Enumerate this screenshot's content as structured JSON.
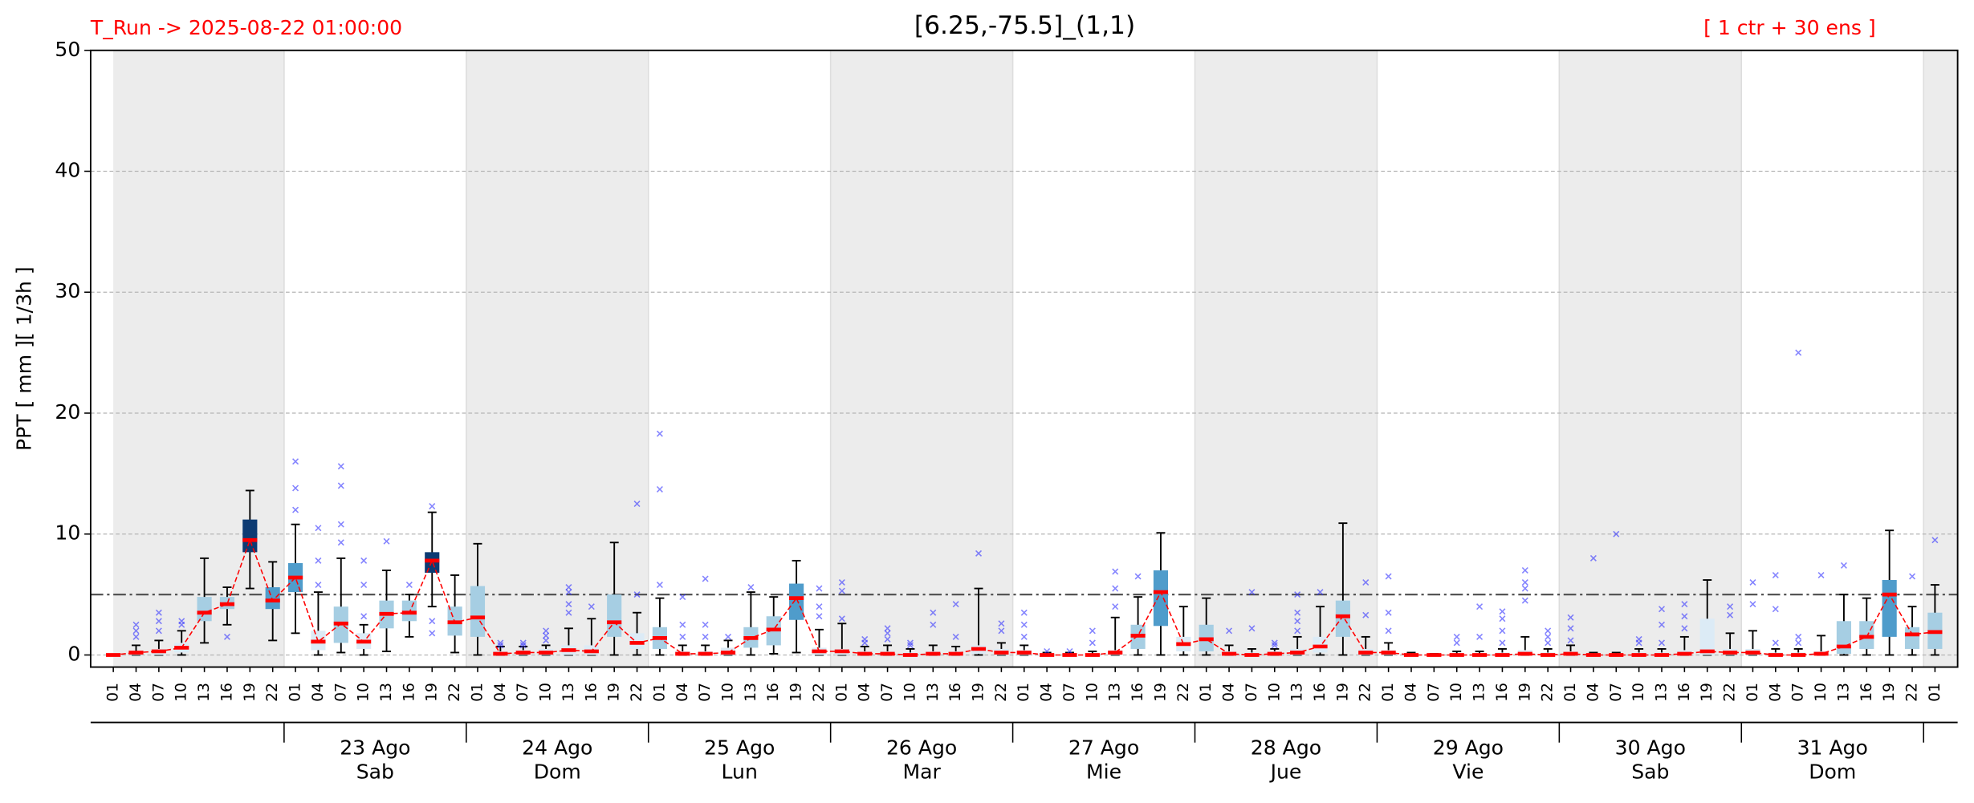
{
  "chart_data": {
    "type": "boxplot",
    "title": "[6.25,-75.5]_(1,1)",
    "run_label": "T_Run -> 2025-08-22  01:00:00",
    "members_label": "[ 1 ctr + 30 ens ]",
    "ylabel": "PPT  [ mm ][ 1/3h ]",
    "categories": [
      "01",
      "04",
      "07",
      "10",
      "13",
      "16",
      "19",
      "22",
      "01",
      "04",
      "07",
      "10",
      "13",
      "16",
      "19",
      "22",
      "01",
      "04",
      "07",
      "10",
      "13",
      "16",
      "19",
      "22",
      "01",
      "04",
      "07",
      "10",
      "13",
      "16",
      "19",
      "22",
      "01",
      "04",
      "07",
      "10",
      "13",
      "16",
      "19",
      "22",
      "01",
      "04",
      "07",
      "10",
      "13",
      "16",
      "19",
      "22",
      "01",
      "04",
      "07",
      "10",
      "13",
      "16",
      "19",
      "22",
      "01",
      "04",
      "07",
      "10",
      "13",
      "16",
      "19",
      "22",
      "01",
      "04",
      "07",
      "10",
      "13",
      "16",
      "19",
      "22",
      "01",
      "04",
      "07",
      "10",
      "13",
      "16",
      "19",
      "22",
      "01"
    ],
    "day_labels": [
      {
        "date": "23 Ago",
        "weekday": "Sab"
      },
      {
        "date": "24 Ago",
        "weekday": "Dom"
      },
      {
        "date": "25 Ago",
        "weekday": "Lun"
      },
      {
        "date": "26 Ago",
        "weekday": "Mar"
      },
      {
        "date": "27 Ago",
        "weekday": "Mie"
      },
      {
        "date": "28 Ago",
        "weekday": "Jue"
      },
      {
        "date": "29 Ago",
        "weekday": "Vie"
      },
      {
        "date": "30 Ago",
        "weekday": "Sab"
      },
      {
        "date": "31 Ago",
        "weekday": "Dom"
      }
    ],
    "ylim": [
      -1,
      50
    ],
    "yticks": [
      0,
      10,
      20,
      30,
      40,
      50
    ],
    "grid": true,
    "threshold": 5,
    "median": [
      0,
      0.2,
      0.3,
      0.6,
      3.5,
      4.2,
      9.5,
      4.5,
      6.4,
      1.1,
      2.6,
      1.1,
      3.4,
      3.5,
      7.8,
      2.7,
      3.1,
      0.1,
      0.2,
      0.2,
      0.4,
      0.3,
      2.7,
      1,
      1.4,
      0.1,
      0.1,
      0.2,
      1.4,
      2.1,
      4.7,
      0.3,
      0.3,
      0.1,
      0.1,
      0,
      0.1,
      0.1,
      0.5,
      0.2,
      0.2,
      0,
      0,
      0,
      0.2,
      1.6,
      5.2,
      0.9,
      1.3,
      0.1,
      0,
      0.1,
      0.2,
      0.7,
      3.2,
      0.2,
      0.2,
      0,
      0,
      0,
      0,
      0,
      0.1,
      0,
      0.1,
      0,
      0,
      0,
      0,
      0.1,
      0.3,
      0.2,
      0.2,
      0,
      0,
      0.1,
      0.7,
      1.5,
      5,
      1.7,
      1.9
    ],
    "q1": [
      0,
      0,
      0,
      0.2,
      2.8,
      3.8,
      8.5,
      3.8,
      5.2,
      0.4,
      1,
      0.5,
      2.2,
      2.8,
      6.8,
      1.6,
      1.5,
      0,
      0,
      0,
      0,
      0,
      1.5,
      0.5,
      0.5,
      0,
      0,
      0,
      0.6,
      0.8,
      2.9,
      0,
      0,
      0,
      0,
      0,
      0,
      0,
      0.1,
      0,
      0,
      0,
      0,
      0,
      0,
      0.5,
      2.4,
      0.3,
      0.3,
      0,
      0,
      0,
      0,
      0.2,
      1.5,
      0,
      0,
      0,
      0,
      0,
      0,
      0,
      0,
      0,
      0,
      0,
      0,
      0,
      0,
      0,
      0,
      0,
      0,
      0,
      0,
      0,
      0.1,
      0.5,
      1.5,
      0.5,
      0.5
    ],
    "q3": [
      0,
      0.3,
      0.5,
      1,
      4.8,
      4.8,
      11.2,
      5.6,
      7.6,
      2,
      4,
      1.8,
      4.5,
      4.5,
      8.5,
      4,
      5.7,
      0.3,
      0.4,
      0.5,
      0.8,
      0.8,
      5,
      1.8,
      2.3,
      0.3,
      0.3,
      0.6,
      2.3,
      3.2,
      5.9,
      0.6,
      0.5,
      0.3,
      0.3,
      0.2,
      0.3,
      0.3,
      0.8,
      0.5,
      0.4,
      0.1,
      0.1,
      0.1,
      0.4,
      2.5,
      7,
      1.5,
      2.5,
      0.3,
      0.2,
      0.3,
      0.5,
      1.5,
      4.5,
      0.5,
      0.4,
      0,
      0,
      0.1,
      0.1,
      0.2,
      0.4,
      0.2,
      0.3,
      0.1,
      0.1,
      0.2,
      0.2,
      0.4,
      3,
      0.5,
      0.5,
      0.2,
      0.2,
      0.3,
      2.8,
      2.8,
      6.2,
      2.3,
      3.5
    ],
    "whisker_low": [
      0,
      0,
      0,
      0,
      1,
      2.5,
      5.5,
      1.2,
      1.8,
      0,
      0.2,
      0,
      0.3,
      1.5,
      4,
      0.2,
      0,
      0,
      0,
      0,
      0,
      0,
      0,
      0,
      0,
      0,
      0,
      0,
      0,
      0.1,
      0.2,
      0,
      0,
      0,
      0,
      0,
      0,
      0,
      0,
      0,
      0,
      0,
      0,
      0,
      0,
      0,
      0,
      0,
      0,
      0,
      0,
      0,
      0,
      0,
      0,
      0,
      0,
      0,
      0,
      0,
      0,
      0,
      0,
      0,
      0,
      0,
      0,
      0,
      0,
      0,
      0,
      0,
      0,
      0,
      0,
      0,
      0,
      0,
      0,
      0,
      0
    ],
    "whisker_high": [
      0,
      0.8,
      1.2,
      2,
      8,
      5.6,
      13.6,
      7.7,
      10.8,
      5.2,
      8,
      2.5,
      7,
      5,
      11.8,
      6.6,
      9.2,
      0.7,
      0.7,
      0.8,
      2.2,
      3,
      9.3,
      3.5,
      4.7,
      0.8,
      0.8,
      1.2,
      5.2,
      4.8,
      7.8,
      2.1,
      2.6,
      0.7,
      0.8,
      0.5,
      0.8,
      0.7,
      5.5,
      1,
      0.8,
      0.2,
      0.2,
      0.3,
      3.1,
      4.8,
      10.1,
      4,
      4.7,
      0.8,
      0.5,
      0.5,
      1.5,
      4,
      10.9,
      1.5,
      1,
      0.2,
      0.1,
      0.3,
      0.3,
      0.5,
      1.5,
      0.5,
      0.8,
      0.2,
      0.2,
      0.5,
      0.5,
      1.5,
      6.2,
      1.8,
      2,
      0.5,
      0.5,
      1.6,
      5,
      4.7,
      10.3,
      4,
      5.8
    ],
    "outliers": [
      [],
      [
        1.5,
        2,
        2.5
      ],
      [
        2,
        2.8,
        3.5
      ],
      [
        2.5,
        2.8
      ],
      [],
      [
        1.5
      ],
      [],
      [],
      [
        12,
        13.8,
        16
      ],
      [
        5.8,
        7.8,
        10.5
      ],
      [
        9.3,
        10.8,
        14,
        15.6
      ],
      [
        3.2,
        5.8,
        7.8
      ],
      [
        9.4
      ],
      [
        5.8
      ],
      [
        1.8,
        2.8,
        12.3
      ],
      [],
      [],
      [
        0.8,
        1
      ],
      [
        0.8,
        1
      ],
      [
        1.2,
        1.6,
        2
      ],
      [
        3.5,
        4.2,
        5.2,
        5.6
      ],
      [
        4
      ],
      [],
      [
        5,
        12.5
      ],
      [
        5.8,
        13.7,
        18.3
      ],
      [
        1.5,
        2.5,
        4.8
      ],
      [
        1.5,
        2.5,
        6.3
      ],
      [
        1.5
      ],
      [
        5.6
      ],
      [],
      [],
      [
        3.2,
        4,
        5.5
      ],
      [
        3,
        5.3,
        6
      ],
      [
        1,
        1.3
      ],
      [
        1.3,
        1.8,
        2.2
      ],
      [
        0.8,
        1
      ],
      [
        2.5,
        3.5
      ],
      [
        1.5,
        4.2
      ],
      [
        8.4
      ],
      [
        2,
        2.6
      ],
      [
        1.5,
        2.5,
        3.5
      ],
      [
        0.3
      ],
      [
        0.3
      ],
      [
        1,
        2
      ],
      [
        4,
        5.5,
        6.9
      ],
      [
        6.5
      ],
      [],
      [],
      [],
      [
        2
      ],
      [
        2.2,
        5.2
      ],
      [
        0.8,
        1
      ],
      [
        2,
        2.8,
        3.5,
        5
      ],
      [
        5.2
      ],
      [],
      [
        3.3,
        6
      ],
      [
        2,
        3.5,
        6.5
      ],
      [],
      [],
      [
        1,
        1.5
      ],
      [
        1.5,
        4
      ],
      [
        1,
        2,
        3,
        3.6
      ],
      [
        4.5,
        5.5,
        6,
        7
      ],
      [
        1,
        1.5,
        2
      ],
      [
        1.2,
        2.2,
        3.1
      ],
      [
        8
      ],
      [
        10
      ],
      [
        1,
        1.3
      ],
      [
        1,
        2.5,
        3.8
      ],
      [
        2.2,
        3.2,
        4.2
      ],
      [],
      [
        3.3,
        4
      ],
      [
        4.2,
        6
      ],
      [
        1,
        3.8,
        6.6
      ],
      [
        1,
        1.5,
        25
      ],
      [
        6.6
      ],
      [
        7.4
      ],
      [],
      [],
      [
        6.5
      ],
      [
        9.5
      ]
    ],
    "box_colors": [
      "#dcebf6",
      "#dcebf6",
      "#dcebf6",
      "#dcebf6",
      "#a6cee3",
      "#a6cee3",
      "#0d3b73",
      "#4f9ccb",
      "#4f9ccb",
      "#dcebf6",
      "#a6cee3",
      "#dcebf6",
      "#a6cee3",
      "#a6cee3",
      "#0d3b73",
      "#a6cee3",
      "#a6cee3",
      "#dcebf6",
      "#dcebf6",
      "#dcebf6",
      "#dcebf6",
      "#dcebf6",
      "#a6cee3",
      "#dcebf6",
      "#a6cee3",
      "#dcebf6",
      "#dcebf6",
      "#dcebf6",
      "#a6cee3",
      "#a6cee3",
      "#4f9ccb",
      "#dcebf6",
      "#dcebf6",
      "#dcebf6",
      "#dcebf6",
      "#dcebf6",
      "#dcebf6",
      "#dcebf6",
      "#dcebf6",
      "#dcebf6",
      "#dcebf6",
      "#dcebf6",
      "#dcebf6",
      "#dcebf6",
      "#dcebf6",
      "#a6cee3",
      "#4f9ccb",
      "#dcebf6",
      "#a6cee3",
      "#dcebf6",
      "#dcebf6",
      "#dcebf6",
      "#dcebf6",
      "#dcebf6",
      "#a6cee3",
      "#dcebf6",
      "#dcebf6",
      "#dcebf6",
      "#dcebf6",
      "#dcebf6",
      "#dcebf6",
      "#dcebf6",
      "#dcebf6",
      "#dcebf6",
      "#dcebf6",
      "#dcebf6",
      "#dcebf6",
      "#dcebf6",
      "#dcebf6",
      "#dcebf6",
      "#dcebf6",
      "#dcebf6",
      "#dcebf6",
      "#dcebf6",
      "#dcebf6",
      "#dcebf6",
      "#a6cee3",
      "#a6cee3",
      "#4f9ccb",
      "#a6cee3",
      "#a6cee3"
    ],
    "median_color": "#ff0000",
    "outlier_color": "#3333ff",
    "threshold_color": "#555555"
  }
}
